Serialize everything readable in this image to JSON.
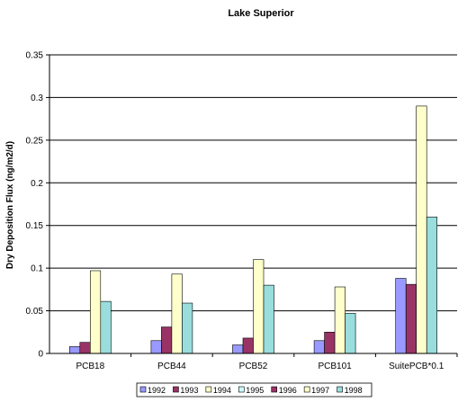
{
  "chart_data": {
    "type": "bar",
    "title": "Lake Superior",
    "xlabel": "",
    "ylabel": "Dry Deposition Flux (ng/m2/d)",
    "ylim": [
      0,
      0.35
    ],
    "yticks": [
      "0",
      "0.05",
      "0.1",
      "0.15",
      "0.2",
      "0.25",
      "0.3",
      "0.35"
    ],
    "grid": "horizontal",
    "legend_position": "bottom",
    "categories": [
      "PCB18",
      "PCB44",
      "PCB52",
      "PCB101",
      "SuitePCB*0.1"
    ],
    "series": [
      {
        "name": "1992",
        "color": "#9999ff",
        "values": [
          null,
          null,
          null,
          null,
          null
        ]
      },
      {
        "name": "1993",
        "color": "#993366",
        "values": [
          null,
          null,
          null,
          null,
          null
        ]
      },
      {
        "name": "1994",
        "color": "#ffffcc",
        "values": [
          null,
          null,
          null,
          null,
          null
        ]
      },
      {
        "name": "1995",
        "color": "#ccffff",
        "values": [
          null,
          null,
          null,
          null,
          null
        ]
      },
      {
        "name": "1996",
        "color": "#9999ff",
        "values": [
          0.008,
          0.015,
          0.01,
          0.015,
          0.088
        ]
      },
      {
        "name": "1997",
        "color": "#993366",
        "values": [
          0.013,
          0.031,
          0.018,
          0.025,
          0.081
        ]
      },
      {
        "name": "1998",
        "color": "#ffffcc",
        "values": [
          0.097,
          0.093,
          0.11,
          0.078,
          0.29
        ]
      },
      {
        "name": "",
        "color": "#99dddd",
        "values": [
          0.061,
          0.059,
          0.08,
          0.047,
          0.16
        ]
      }
    ],
    "legend": [
      {
        "label": "1992",
        "color": "#9999ff"
      },
      {
        "label": "1993",
        "color": "#993366"
      },
      {
        "label": "1994",
        "color": "#ffffcc"
      },
      {
        "label": "1995",
        "color": "#ccffff"
      },
      {
        "label": "1996",
        "color": "#993366"
      },
      {
        "label": "1997",
        "color": "#ffffcc"
      },
      {
        "label": "1998",
        "color": "#99dddd"
      }
    ]
  }
}
